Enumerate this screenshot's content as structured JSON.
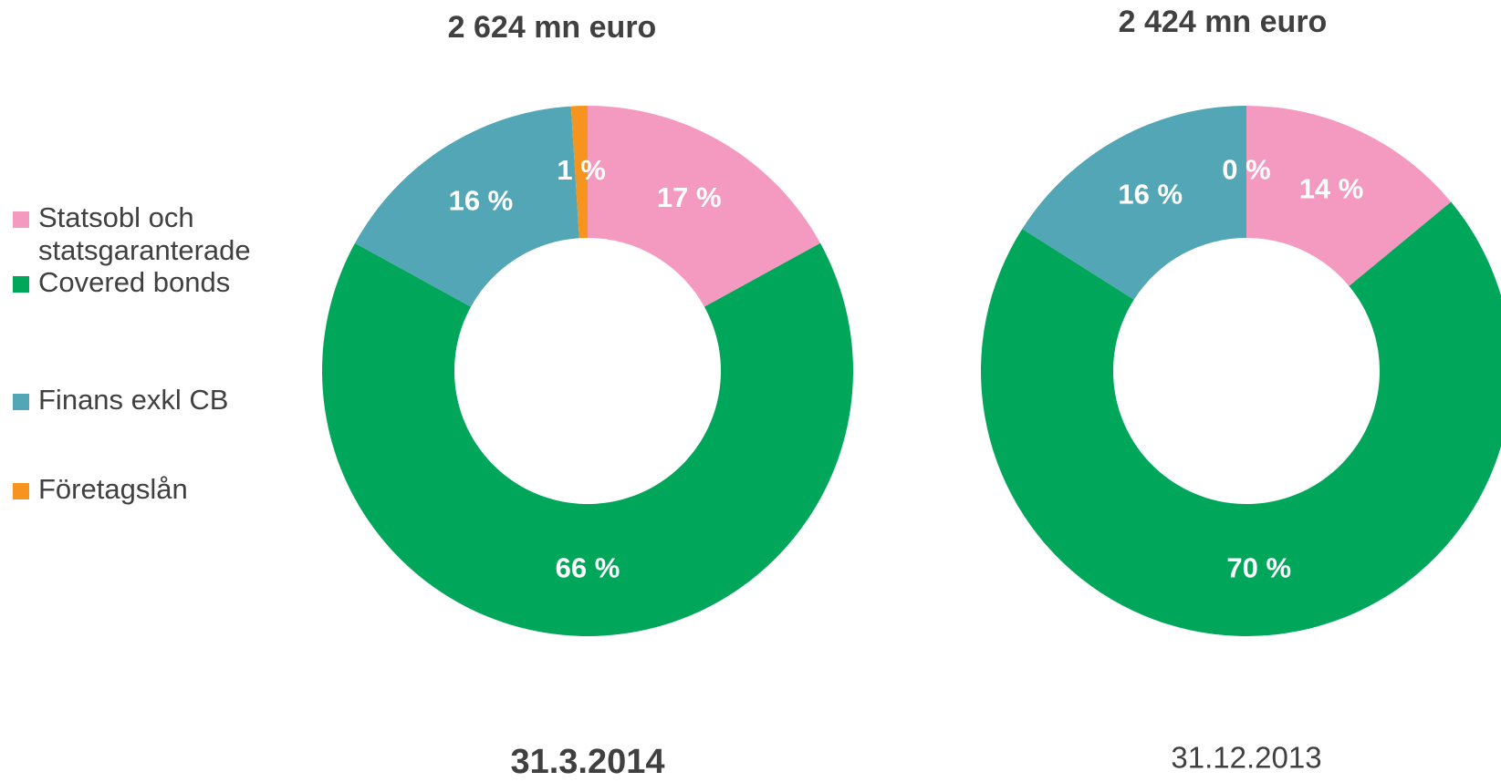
{
  "chart_data": [
    {
      "type": "donut",
      "title": "2 624 mn euro",
      "subtitle": "31.3.2014",
      "categories": [
        "Statsobl och statsgaranterade",
        "Covered bonds",
        "Finans exkl CB",
        "Företagslån"
      ],
      "values": [
        17,
        66,
        16,
        1
      ],
      "value_labels": [
        "17 %",
        "66 %",
        "16 %",
        "1 %"
      ],
      "colors": [
        "#f49ac1",
        "#00a65a",
        "#53a6b5",
        "#f7941d"
      ]
    },
    {
      "type": "donut",
      "title": "2 424 mn euro",
      "subtitle": "31.12.2013",
      "values": [
        14,
        70,
        16,
        0
      ],
      "value_labels": [
        "14 %",
        "70 %",
        "16 %",
        "0 %"
      ],
      "colors": [
        "#f49ac1",
        "#00a65a",
        "#53a6b5",
        "#f7941d"
      ]
    }
  ]
}
